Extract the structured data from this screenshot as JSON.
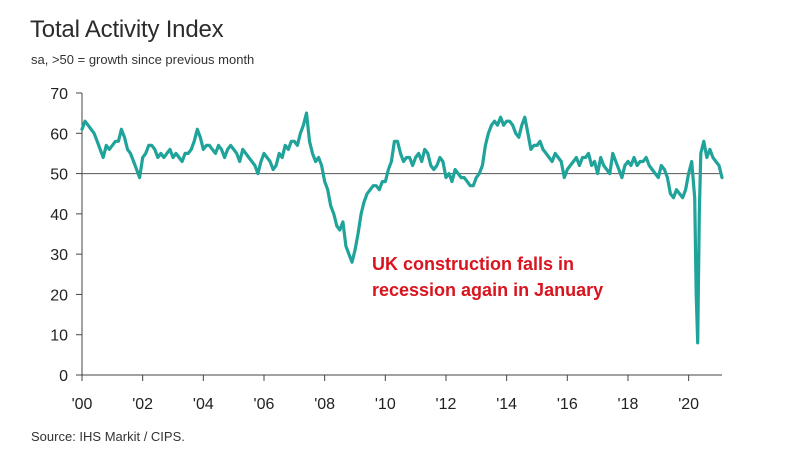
{
  "chart_data": {
    "type": "line",
    "title": "Total Activity Index",
    "subtitle": "sa, >50 = growth since previous month",
    "source": "Source: IHS Markit / CIPS.",
    "annotation_line1": "UK construction falls in",
    "annotation_line2": "recession again in January",
    "xlabel": "",
    "ylabel": "",
    "ylim": [
      0,
      70
    ],
    "xlim": [
      2000.0,
      2021.1
    ],
    "y_ticks": [
      0,
      10,
      20,
      30,
      40,
      50,
      60,
      70
    ],
    "x_ticks": [
      {
        "value": 2000,
        "label": "'00"
      },
      {
        "value": 2002,
        "label": "'02"
      },
      {
        "value": 2004,
        "label": "'04"
      },
      {
        "value": 2006,
        "label": "'06"
      },
      {
        "value": 2008,
        "label": "'08"
      },
      {
        "value": 2010,
        "label": "'10"
      },
      {
        "value": 2012,
        "label": "'12"
      },
      {
        "value": 2014,
        "label": "'14"
      },
      {
        "value": 2016,
        "label": "'16"
      },
      {
        "value": 2018,
        "label": "'18"
      },
      {
        "value": 2020,
        "label": "'20"
      }
    ],
    "reference_line": 50,
    "grid": false,
    "series": [
      {
        "name": "Total Activity Index",
        "color": "#1fa39a",
        "x": [
          2000.0,
          2000.1,
          2000.2,
          2000.3,
          2000.4,
          2000.5,
          2000.6,
          2000.7,
          2000.8,
          2000.9,
          2001.0,
          2001.1,
          2001.2,
          2001.3,
          2001.4,
          2001.5,
          2001.6,
          2001.7,
          2001.8,
          2001.9,
          2002.0,
          2002.1,
          2002.2,
          2002.3,
          2002.4,
          2002.5,
          2002.6,
          2002.7,
          2002.8,
          2002.9,
          2003.0,
          2003.1,
          2003.2,
          2003.3,
          2003.4,
          2003.5,
          2003.6,
          2003.7,
          2003.8,
          2003.9,
          2004.0,
          2004.1,
          2004.2,
          2004.3,
          2004.4,
          2004.5,
          2004.6,
          2004.7,
          2004.8,
          2004.9,
          2005.0,
          2005.1,
          2005.2,
          2005.3,
          2005.4,
          2005.5,
          2005.6,
          2005.7,
          2005.8,
          2005.9,
          2006.0,
          2006.1,
          2006.2,
          2006.3,
          2006.4,
          2006.5,
          2006.6,
          2006.7,
          2006.8,
          2006.9,
          2007.0,
          2007.1,
          2007.2,
          2007.3,
          2007.4,
          2007.5,
          2007.6,
          2007.7,
          2007.8,
          2007.9,
          2008.0,
          2008.1,
          2008.2,
          2008.3,
          2008.4,
          2008.5,
          2008.6,
          2008.7,
          2008.8,
          2008.9,
          2009.0,
          2009.1,
          2009.2,
          2009.3,
          2009.4,
          2009.5,
          2009.6,
          2009.7,
          2009.8,
          2009.9,
          2010.0,
          2010.1,
          2010.2,
          2010.3,
          2010.4,
          2010.5,
          2010.6,
          2010.7,
          2010.8,
          2010.9,
          2011.0,
          2011.1,
          2011.2,
          2011.3,
          2011.4,
          2011.5,
          2011.6,
          2011.7,
          2011.8,
          2011.9,
          2012.0,
          2012.1,
          2012.2,
          2012.3,
          2012.4,
          2012.5,
          2012.6,
          2012.7,
          2012.8,
          2012.9,
          2013.0,
          2013.1,
          2013.2,
          2013.3,
          2013.4,
          2013.5,
          2013.6,
          2013.7,
          2013.8,
          2013.9,
          2014.0,
          2014.1,
          2014.2,
          2014.3,
          2014.4,
          2014.5,
          2014.6,
          2014.7,
          2014.8,
          2014.9,
          2015.0,
          2015.1,
          2015.2,
          2015.3,
          2015.4,
          2015.5,
          2015.6,
          2015.7,
          2015.8,
          2015.9,
          2016.0,
          2016.1,
          2016.2,
          2016.3,
          2016.4,
          2016.5,
          2016.6,
          2016.7,
          2016.8,
          2016.9,
          2017.0,
          2017.1,
          2017.2,
          2017.3,
          2017.4,
          2017.5,
          2017.6,
          2017.7,
          2017.8,
          2017.9,
          2018.0,
          2018.1,
          2018.2,
          2018.3,
          2018.4,
          2018.5,
          2018.6,
          2018.7,
          2018.8,
          2018.9,
          2019.0,
          2019.1,
          2019.2,
          2019.3,
          2019.4,
          2019.5,
          2019.6,
          2019.7,
          2019.8,
          2019.9,
          2020.0,
          2020.1,
          2020.2,
          2020.25,
          2020.3,
          2020.35,
          2020.4,
          2020.5,
          2020.6,
          2020.7,
          2020.8,
          2020.9,
          2021.0,
          2021.1
        ],
        "values": [
          61,
          63,
          62,
          61,
          60,
          58,
          56,
          54,
          57,
          56,
          57,
          58,
          58,
          61,
          59,
          56,
          55,
          53,
          51,
          49,
          54,
          55,
          57,
          57,
          56,
          54,
          55,
          54,
          55,
          56,
          54,
          55,
          54,
          53,
          55,
          55,
          56,
          58,
          61,
          59,
          56,
          57,
          57,
          56,
          55,
          57,
          56,
          54,
          56,
          57,
          56,
          55,
          53,
          56,
          55,
          54,
          53,
          52,
          50,
          53,
          55,
          54,
          53,
          51,
          52,
          55,
          54,
          57,
          56,
          58,
          58,
          57,
          60,
          62,
          65,
          58,
          55,
          53,
          54,
          52,
          48,
          46,
          42,
          40,
          37,
          36,
          38,
          32,
          30,
          28,
          31,
          35,
          40,
          43,
          45,
          46,
          47,
          47,
          46,
          48,
          48,
          51,
          53,
          58,
          58,
          55,
          53,
          54,
          54,
          52,
          54,
          55,
          53,
          56,
          55,
          52,
          51,
          52,
          54,
          53,
          49,
          50,
          48,
          51,
          50,
          49,
          49,
          48,
          47,
          47,
          49,
          50,
          52,
          57,
          60,
          62,
          63,
          62,
          64,
          62,
          63,
          63,
          62,
          60,
          59,
          62,
          64,
          60,
          56,
          57,
          57,
          58,
          56,
          55,
          54,
          53,
          55,
          54,
          53,
          49,
          51,
          52,
          53,
          54,
          52,
          54,
          54,
          55,
          52,
          53,
          50,
          54,
          52,
          51,
          50,
          55,
          53,
          51,
          49,
          52,
          53,
          52,
          54,
          52,
          53,
          53,
          54,
          52,
          51,
          50,
          49,
          52,
          51,
          49,
          45,
          44,
          46,
          45,
          44,
          46,
          50,
          53,
          44,
          20,
          8,
          40,
          55,
          58,
          54,
          56,
          54,
          53,
          52,
          49
        ]
      }
    ]
  }
}
